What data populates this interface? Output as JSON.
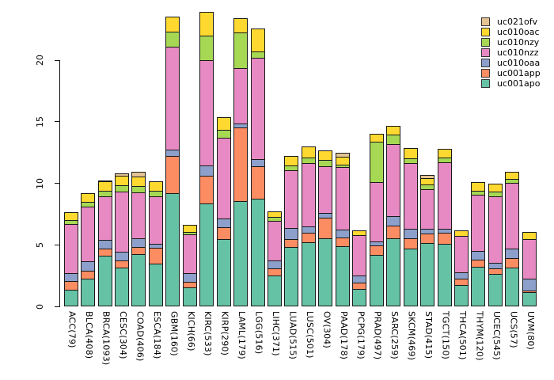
{
  "chart_data": {
    "type": "bar",
    "stacked": true,
    "title": "",
    "xlabel": "",
    "ylabel": "",
    "ylim": [
      0,
      24
    ],
    "yticks": [
      0,
      5,
      10,
      15,
      20
    ],
    "grid": false,
    "legend_position": "top-right",
    "categories": [
      "ACC(79)",
      "BLCA(408)",
      "BRCA(1093)",
      "CESC(304)",
      "COAD(406)",
      "ESCA(184)",
      "GBM(160)",
      "KICH(66)",
      "KIRC(533)",
      "KIRP(290)",
      "LAML(179)",
      "LGG(516)",
      "LIHC(371)",
      "LUAD(515)",
      "LUSC(501)",
      "OV(304)",
      "PAAD(178)",
      "PCPG(179)",
      "PRAD(497)",
      "SARC(259)",
      "SKCM(469)",
      "STAD(415)",
      "TGCT(150)",
      "THCA(501)",
      "THYM(120)",
      "UCEC(545)",
      "UCS(57)",
      "UVM(80)"
    ],
    "series": [
      {
        "name": "uc001apo",
        "color": "#66C2A5",
        "values": [
          1.3,
          2.2,
          4.2,
          3.15,
          4.3,
          3.5,
          9.25,
          1.55,
          8.4,
          5.5,
          8.6,
          8.8,
          2.5,
          4.85,
          5.25,
          5.6,
          4.95,
          1.4,
          4.2,
          5.6,
          4.75,
          5.25,
          5.15,
          1.75,
          3.25,
          2.6,
          3.15,
          1.1
        ]
      },
      {
        "name": "uc001app",
        "color": "#FC8D62",
        "values": [
          0.65,
          0.65,
          0.55,
          0.55,
          0.55,
          1.25,
          3.0,
          0.4,
          2.25,
          0.95,
          6.0,
          2.6,
          0.55,
          0.65,
          0.75,
          1.7,
          0.7,
          0.45,
          0.7,
          0.95,
          0.75,
          0.75,
          0.85,
          0.45,
          0.55,
          0.45,
          0.75,
          0.1
        ]
      },
      {
        "name": "uc010oaa",
        "color": "#8DA0CB",
        "values": [
          0.65,
          0.7,
          0.65,
          0.7,
          0.65,
          0.3,
          0.5,
          0.65,
          0.75,
          0.65,
          0.3,
          0.55,
          0.65,
          0.85,
          0.45,
          0.3,
          0.6,
          0.55,
          0.3,
          0.75,
          0.75,
          0.35,
          0.25,
          0.5,
          0.65,
          0.4,
          0.75,
          0.95
        ]
      },
      {
        "name": "uc010nzz",
        "color": "#E78AC3",
        "values": [
          4.15,
          4.65,
          3.65,
          5.05,
          3.9,
          4.0,
          8.4,
          3.35,
          8.65,
          6.7,
          4.5,
          8.3,
          3.3,
          4.8,
          5.25,
          3.9,
          5.2,
          3.45,
          4.9,
          6.0,
          5.45,
          3.3,
          5.55,
          3.1,
          4.7,
          5.55,
          5.45,
          3.35
        ]
      },
      {
        "name": "uc010nzy",
        "color": "#A6D854",
        "values": [
          0.3,
          0.3,
          0.4,
          0.45,
          0.45,
          0.4,
          1.2,
          0.1,
          2.0,
          0.6,
          2.9,
          0.5,
          0.3,
          0.35,
          0.45,
          0.45,
          0.15,
          0,
          3.3,
          0.7,
          0.35,
          0.35,
          0.35,
          0,
          0.3,
          0.35,
          0.3,
          0
        ]
      },
      {
        "name": "uc010oac",
        "color": "#FFD92F",
        "values": [
          0.6,
          0.7,
          0.75,
          0.8,
          0.75,
          0.7,
          1.2,
          0.55,
          1.9,
          0.95,
          1.1,
          1.8,
          0.45,
          0.75,
          0.85,
          0.75,
          0.6,
          0.3,
          0.65,
          0.65,
          0.8,
          0.5,
          0.65,
          0.35,
          0.65,
          0.65,
          0.55,
          0.55
        ]
      },
      {
        "name": "uc021ofv",
        "color": "#E5C494",
        "values": [
          0,
          0,
          0.05,
          0.1,
          0.35,
          0,
          0,
          0,
          0,
          0,
          0,
          0,
          0,
          0,
          0,
          0,
          0.3,
          0,
          0,
          0,
          0,
          0.15,
          0,
          0,
          0,
          0,
          0,
          0
        ]
      }
    ],
    "legend_items_top_to_bottom": [
      {
        "label": "uc021ofv",
        "color": "#E5C494"
      },
      {
        "label": "uc010oac",
        "color": "#FFD92F"
      },
      {
        "label": "uc010nzy",
        "color": "#A6D854"
      },
      {
        "label": "uc010nzz",
        "color": "#E78AC3"
      },
      {
        "label": "uc010oaa",
        "color": "#8DA0CB"
      },
      {
        "label": "uc001app",
        "color": "#FC8D62"
      },
      {
        "label": "uc001apo",
        "color": "#66C2A5"
      }
    ]
  }
}
